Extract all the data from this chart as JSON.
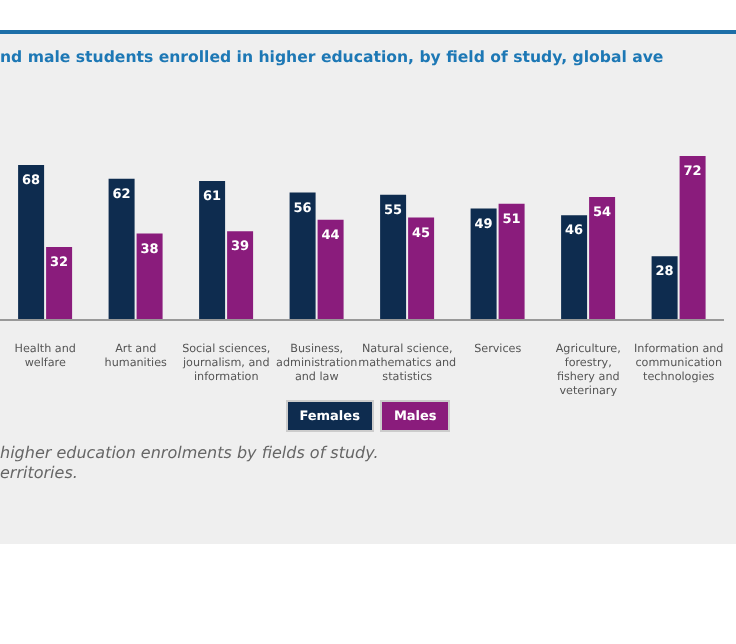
{
  "chart_data": {
    "type": "bar",
    "title": "nd male students enrolled in higher education, by field of study, global ave",
    "categories": [
      "Health and welfare",
      "Art and humanities",
      "Social sciences, journalism, and information",
      "Business, administration and law",
      "Natural science, mathematics and statistics",
      "Services",
      "Agriculture, forestry, fishery and veterinary",
      "Information and communication technologies"
    ],
    "series": [
      {
        "name": "Females",
        "color": "#0e2c4f",
        "values": [
          68,
          62,
          61,
          56,
          55,
          49,
          46,
          28
        ]
      },
      {
        "name": "Males",
        "color": "#8a1c7c",
        "values": [
          32,
          38,
          39,
          44,
          45,
          51,
          54,
          72
        ]
      }
    ],
    "data_labels": true,
    "legend": "bottom",
    "annotations": [
      "higher education enrolments by fields of study.",
      "erritories."
    ]
  }
}
